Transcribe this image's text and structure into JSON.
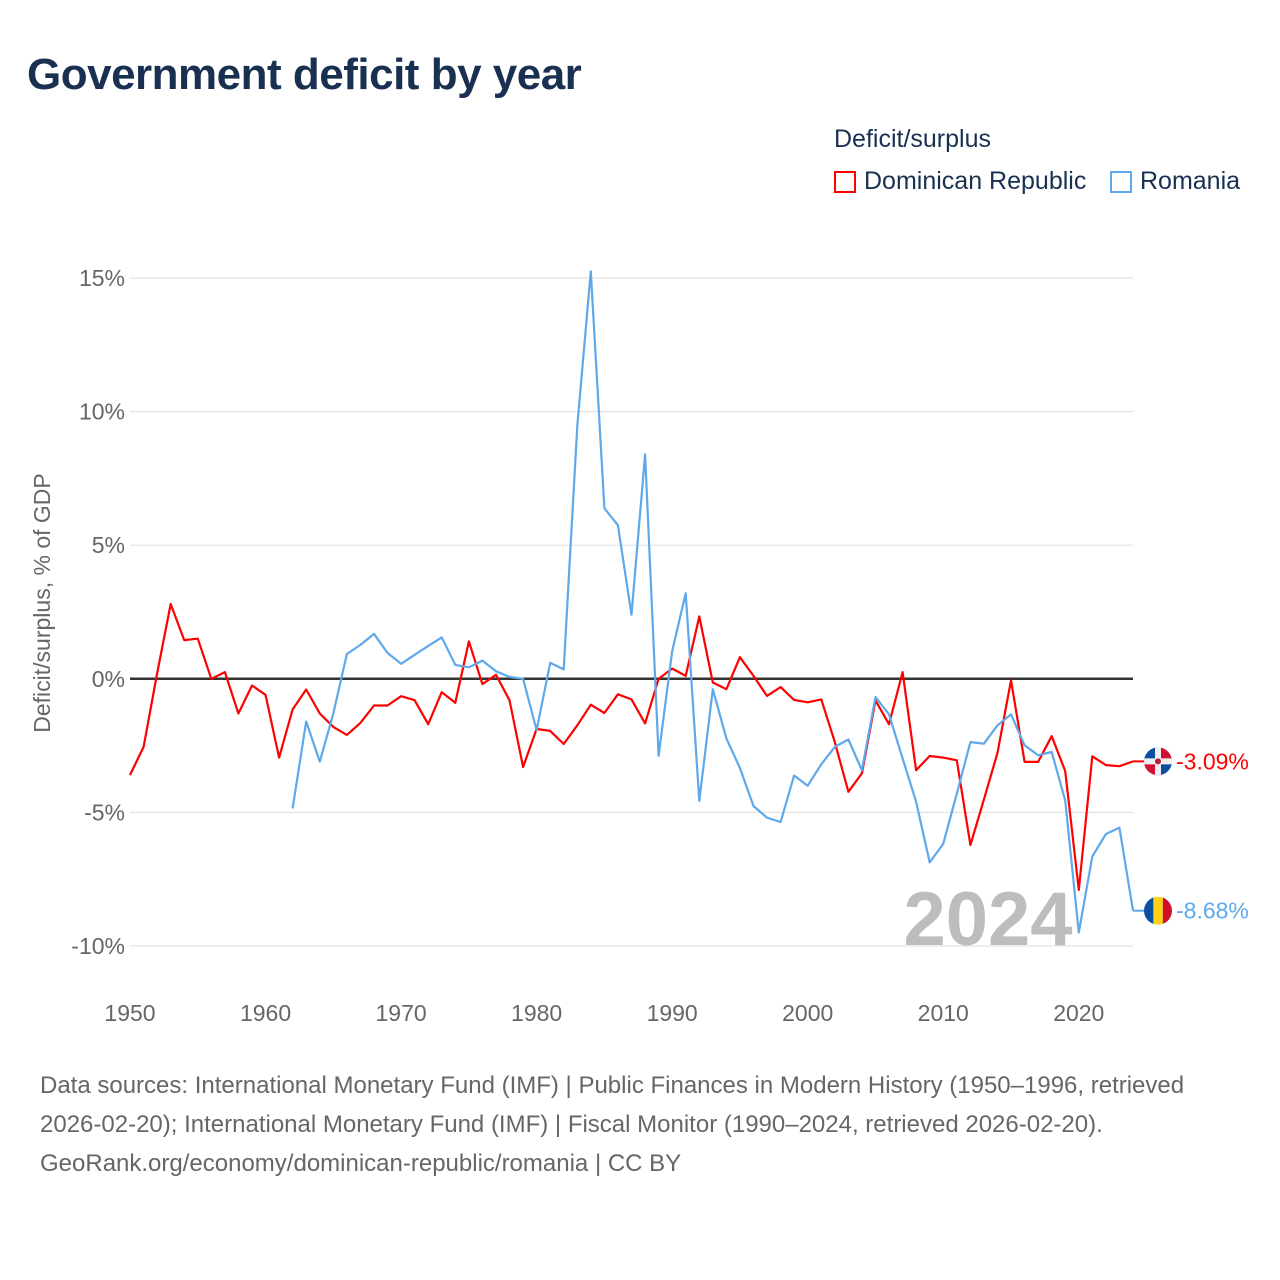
{
  "title": "Government deficit by year",
  "legend": {
    "title": "Deficit/surplus",
    "items": [
      {
        "label": "Dominican Republic",
        "color": "#ff0000"
      },
      {
        "label": "Romania",
        "color": "#5ea8ec"
      }
    ]
  },
  "watermark_year": "2024",
  "footer": {
    "sources": "Data sources: International Monetary Fund (IMF) | Public Finances in Modern History (1950–1996, retrieved 2026-02-20); International Monetary Fund (IMF) | Fiscal Monitor (1990–2024, retrieved 2026-02-20).",
    "credit": "GeoRank.org/economy/dominican-republic/romania | CC BY"
  },
  "chart_data": {
    "type": "line",
    "title": "Government deficit by year",
    "xlabel": "",
    "ylabel": "Deficit/surplus, % of GDP",
    "xlim": [
      1950,
      2024
    ],
    "ylim": [
      -10,
      15
    ],
    "x_ticks": [
      1950,
      1960,
      1970,
      1980,
      1990,
      2000,
      2010,
      2020
    ],
    "x_tick_labels": [
      "1950",
      "1960",
      "1970",
      "1980",
      "1990",
      "2000",
      "2010",
      "2020"
    ],
    "y_ticks": [
      15,
      10,
      5,
      0,
      -5,
      -10
    ],
    "y_tick_labels": [
      "15%",
      "10%",
      "5%",
      "0%",
      "-5%",
      "-10%"
    ],
    "grid": true,
    "legend_position": "top-right",
    "series": [
      {
        "name": "Dominican Republic",
        "color": "#ff0000",
        "start_year": 1950,
        "end_label": "-3.09%",
        "values": [
          -3.6,
          -2.55,
          0.2,
          2.8,
          1.45,
          1.5,
          0,
          0.25,
          -1.3,
          -0.25,
          -0.6,
          -2.95,
          -1.15,
          -0.4,
          -1.3,
          -1.8,
          -2.1,
          -1.65,
          -1.0,
          -1.0,
          -0.65,
          -0.8,
          -1.7,
          -0.5,
          -0.9,
          1.4,
          -0.2,
          0.15,
          -0.8,
          -3.3,
          -1.88,
          -1.95,
          -2.44,
          -1.74,
          -0.97,
          -1.28,
          -0.58,
          -0.77,
          -1.67,
          0,
          0.38,
          0.11,
          2.33,
          -0.14,
          -0.39,
          0.81,
          0.11,
          -0.64,
          -0.31,
          -0.79,
          -0.88,
          -0.77,
          -2.37,
          -4.23,
          -3.54,
          -0.81,
          -1.7,
          0.25,
          -3.42,
          -2.89,
          -2.95,
          -3.05,
          -6.22,
          -4.52,
          -2.77,
          -0.06,
          -3.11,
          -3.11,
          -2.15,
          -3.45,
          -7.9,
          -2.9,
          -3.23,
          -3.27,
          -3.09
        ]
      },
      {
        "name": "Romania",
        "color": "#5ea8ec",
        "start_year": 1962,
        "end_label": "-8.68%",
        "values": [
          -4.85,
          -1.6,
          -3.1,
          -1.3,
          0.93,
          1.27,
          1.68,
          0.97,
          0.56,
          0.9,
          1.23,
          1.55,
          0.52,
          0.43,
          0.68,
          0.28,
          0.07,
          0,
          -1.92,
          0.6,
          0.35,
          9.47,
          15.25,
          6.38,
          5.75,
          2.4,
          8.4,
          -2.88,
          1.04,
          3.2,
          -4.57,
          -0.39,
          -2.23,
          -3.34,
          -4.76,
          -5.2,
          -5.36,
          -3.62,
          -4.0,
          -3.2,
          -2.55,
          -2.27,
          -3.42,
          -0.68,
          -1.33,
          -2.98,
          -4.6,
          -6.87,
          -6.18,
          -4.3,
          -2.37,
          -2.43,
          -1.74,
          -1.33,
          -2.49,
          -2.86,
          -2.74,
          -4.55,
          -9.5,
          -6.65,
          -5.81,
          -5.57,
          -8.68
        ]
      }
    ]
  }
}
